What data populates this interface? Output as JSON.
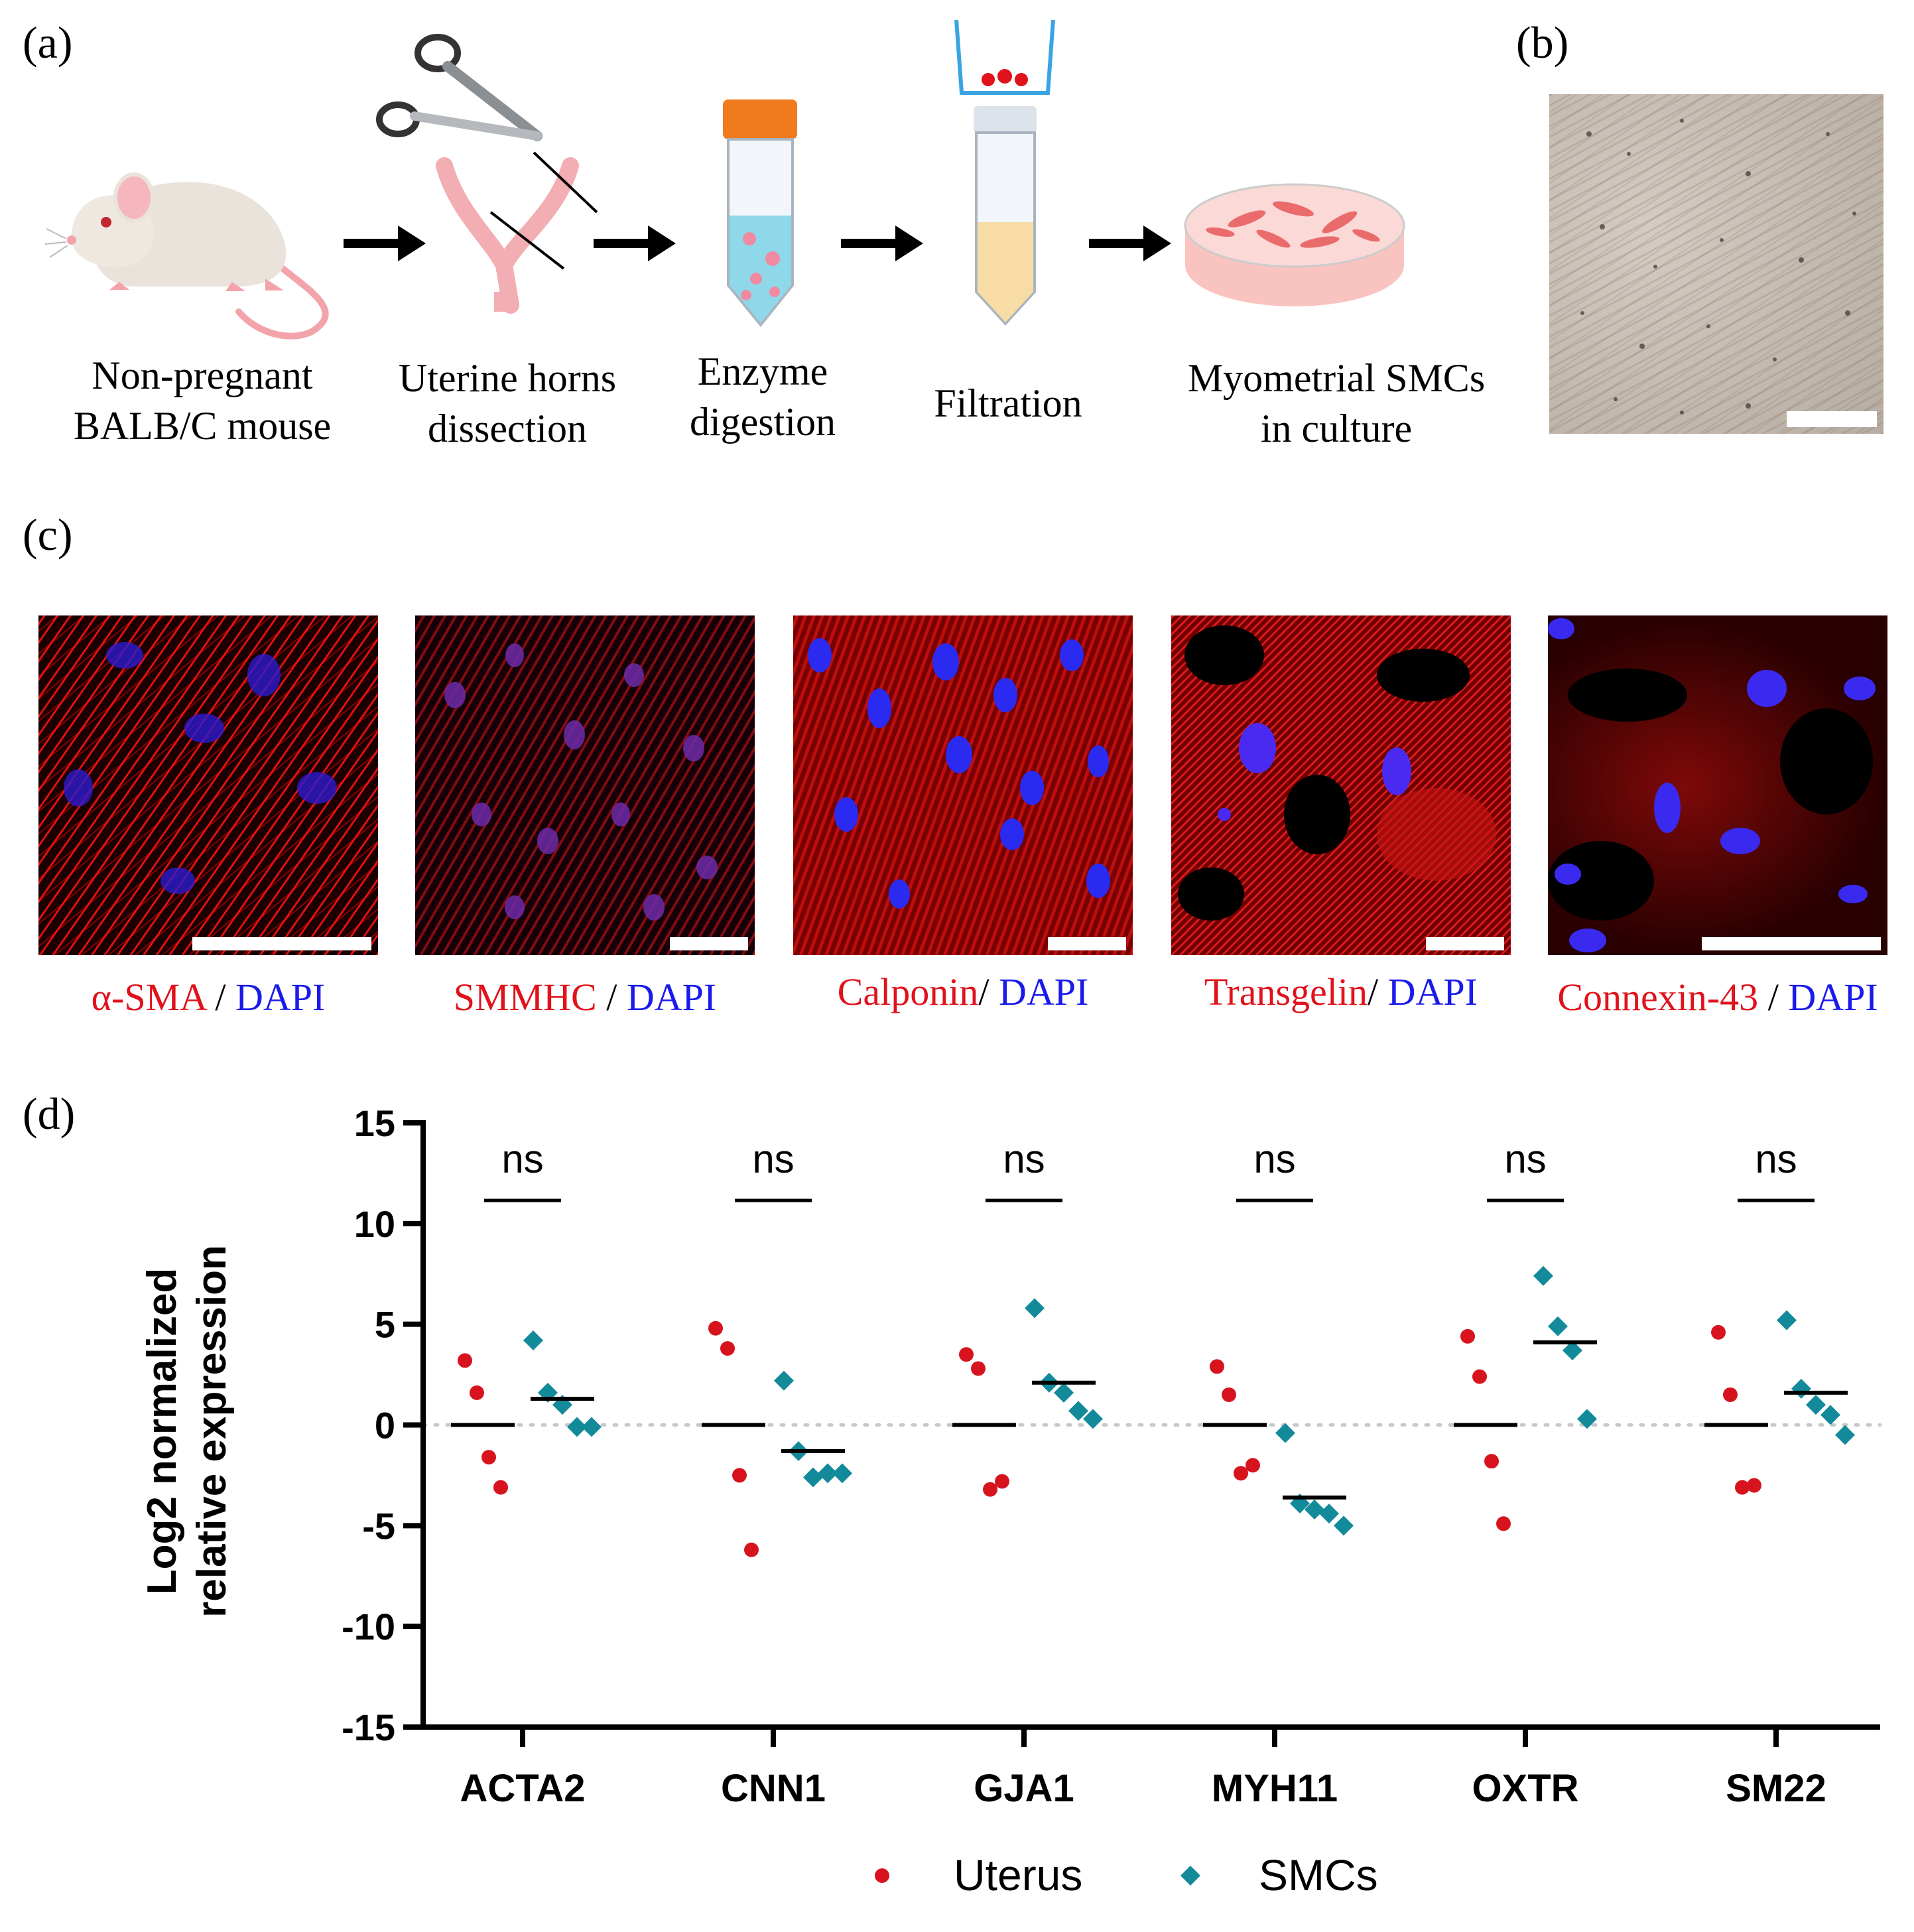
{
  "panels": {
    "a": "(a)",
    "b": "(b)",
    "c": "(c)",
    "d": "(d)"
  },
  "workflow": {
    "steps": [
      {
        "line1": "Non-pregnant",
        "line2": "BALB/C mouse"
      },
      {
        "line1": "Uterine horns",
        "line2": "dissection"
      },
      {
        "line1": "Enzyme",
        "line2": "digestion"
      },
      {
        "line1": "Filtration",
        "line2": ""
      },
      {
        "line1": "Myometrial SMCs",
        "line2": "in culture"
      }
    ]
  },
  "stains": [
    {
      "marker": "α-SMA",
      "sep": " / ",
      "dapi": "DAPI"
    },
    {
      "marker": "SMMHC",
      "sep": " / ",
      "dapi": "DAPI"
    },
    {
      "marker": "Calponin",
      "sep": "/ ",
      "dapi": "DAPI"
    },
    {
      "marker": "Transgelin",
      "sep": "/ ",
      "dapi": "DAPI"
    },
    {
      "marker": "Connexin-43",
      "sep": " / ",
      "dapi": "DAPI"
    }
  ],
  "colors": {
    "uterus": "#d7141e",
    "smcs": "#138a9a",
    "marker_red": "#e0121b",
    "dapi_blue": "#1a1aeb"
  },
  "chart_data": {
    "type": "scatter",
    "title": "",
    "ylabel_line1": "Log2 normalized",
    "ylabel_line2": "relative expression",
    "xlabel": "",
    "ylim": [
      -15,
      15
    ],
    "yticks": [
      15,
      10,
      5,
      0,
      -5,
      -10,
      -15
    ],
    "categories": [
      "ACTA2",
      "CNN1",
      "GJA1",
      "MYH11",
      "OXTR",
      "SM22"
    ],
    "significance": [
      "ns",
      "ns",
      "ns",
      "ns",
      "ns",
      "ns"
    ],
    "grid": false,
    "reference_line": 0,
    "legend_position": "bottom-center",
    "series": [
      {
        "name": "Uterus",
        "marker": "circle",
        "medians": [
          0,
          0,
          0,
          0,
          0,
          0
        ],
        "points": [
          [
            3.2,
            1.6,
            -1.6,
            -3.1
          ],
          [
            4.8,
            3.8,
            -2.5,
            -6.2
          ],
          [
            3.5,
            2.8,
            -3.2,
            -2.8
          ],
          [
            2.9,
            1.5,
            -2.4,
            -2.0
          ],
          [
            4.4,
            2.4,
            -1.8,
            -4.9
          ],
          [
            4.6,
            1.5,
            -3.1,
            -3.0
          ]
        ]
      },
      {
        "name": "SMCs",
        "marker": "diamond",
        "medians": [
          1.3,
          -1.3,
          2.1,
          -3.6,
          4.1,
          1.6
        ],
        "points": [
          [
            4.2,
            1.6,
            1.0,
            -0.1,
            -0.1
          ],
          [
            2.2,
            -1.3,
            -2.6,
            -2.4,
            -2.4
          ],
          [
            5.8,
            2.1,
            1.6,
            0.7,
            0.3
          ],
          [
            -0.4,
            -3.9,
            -4.2,
            -4.4,
            -5.0
          ],
          [
            7.4,
            4.9,
            3.7,
            0.3
          ],
          [
            5.2,
            1.8,
            1.0,
            0.5,
            -0.5
          ]
        ]
      }
    ]
  }
}
